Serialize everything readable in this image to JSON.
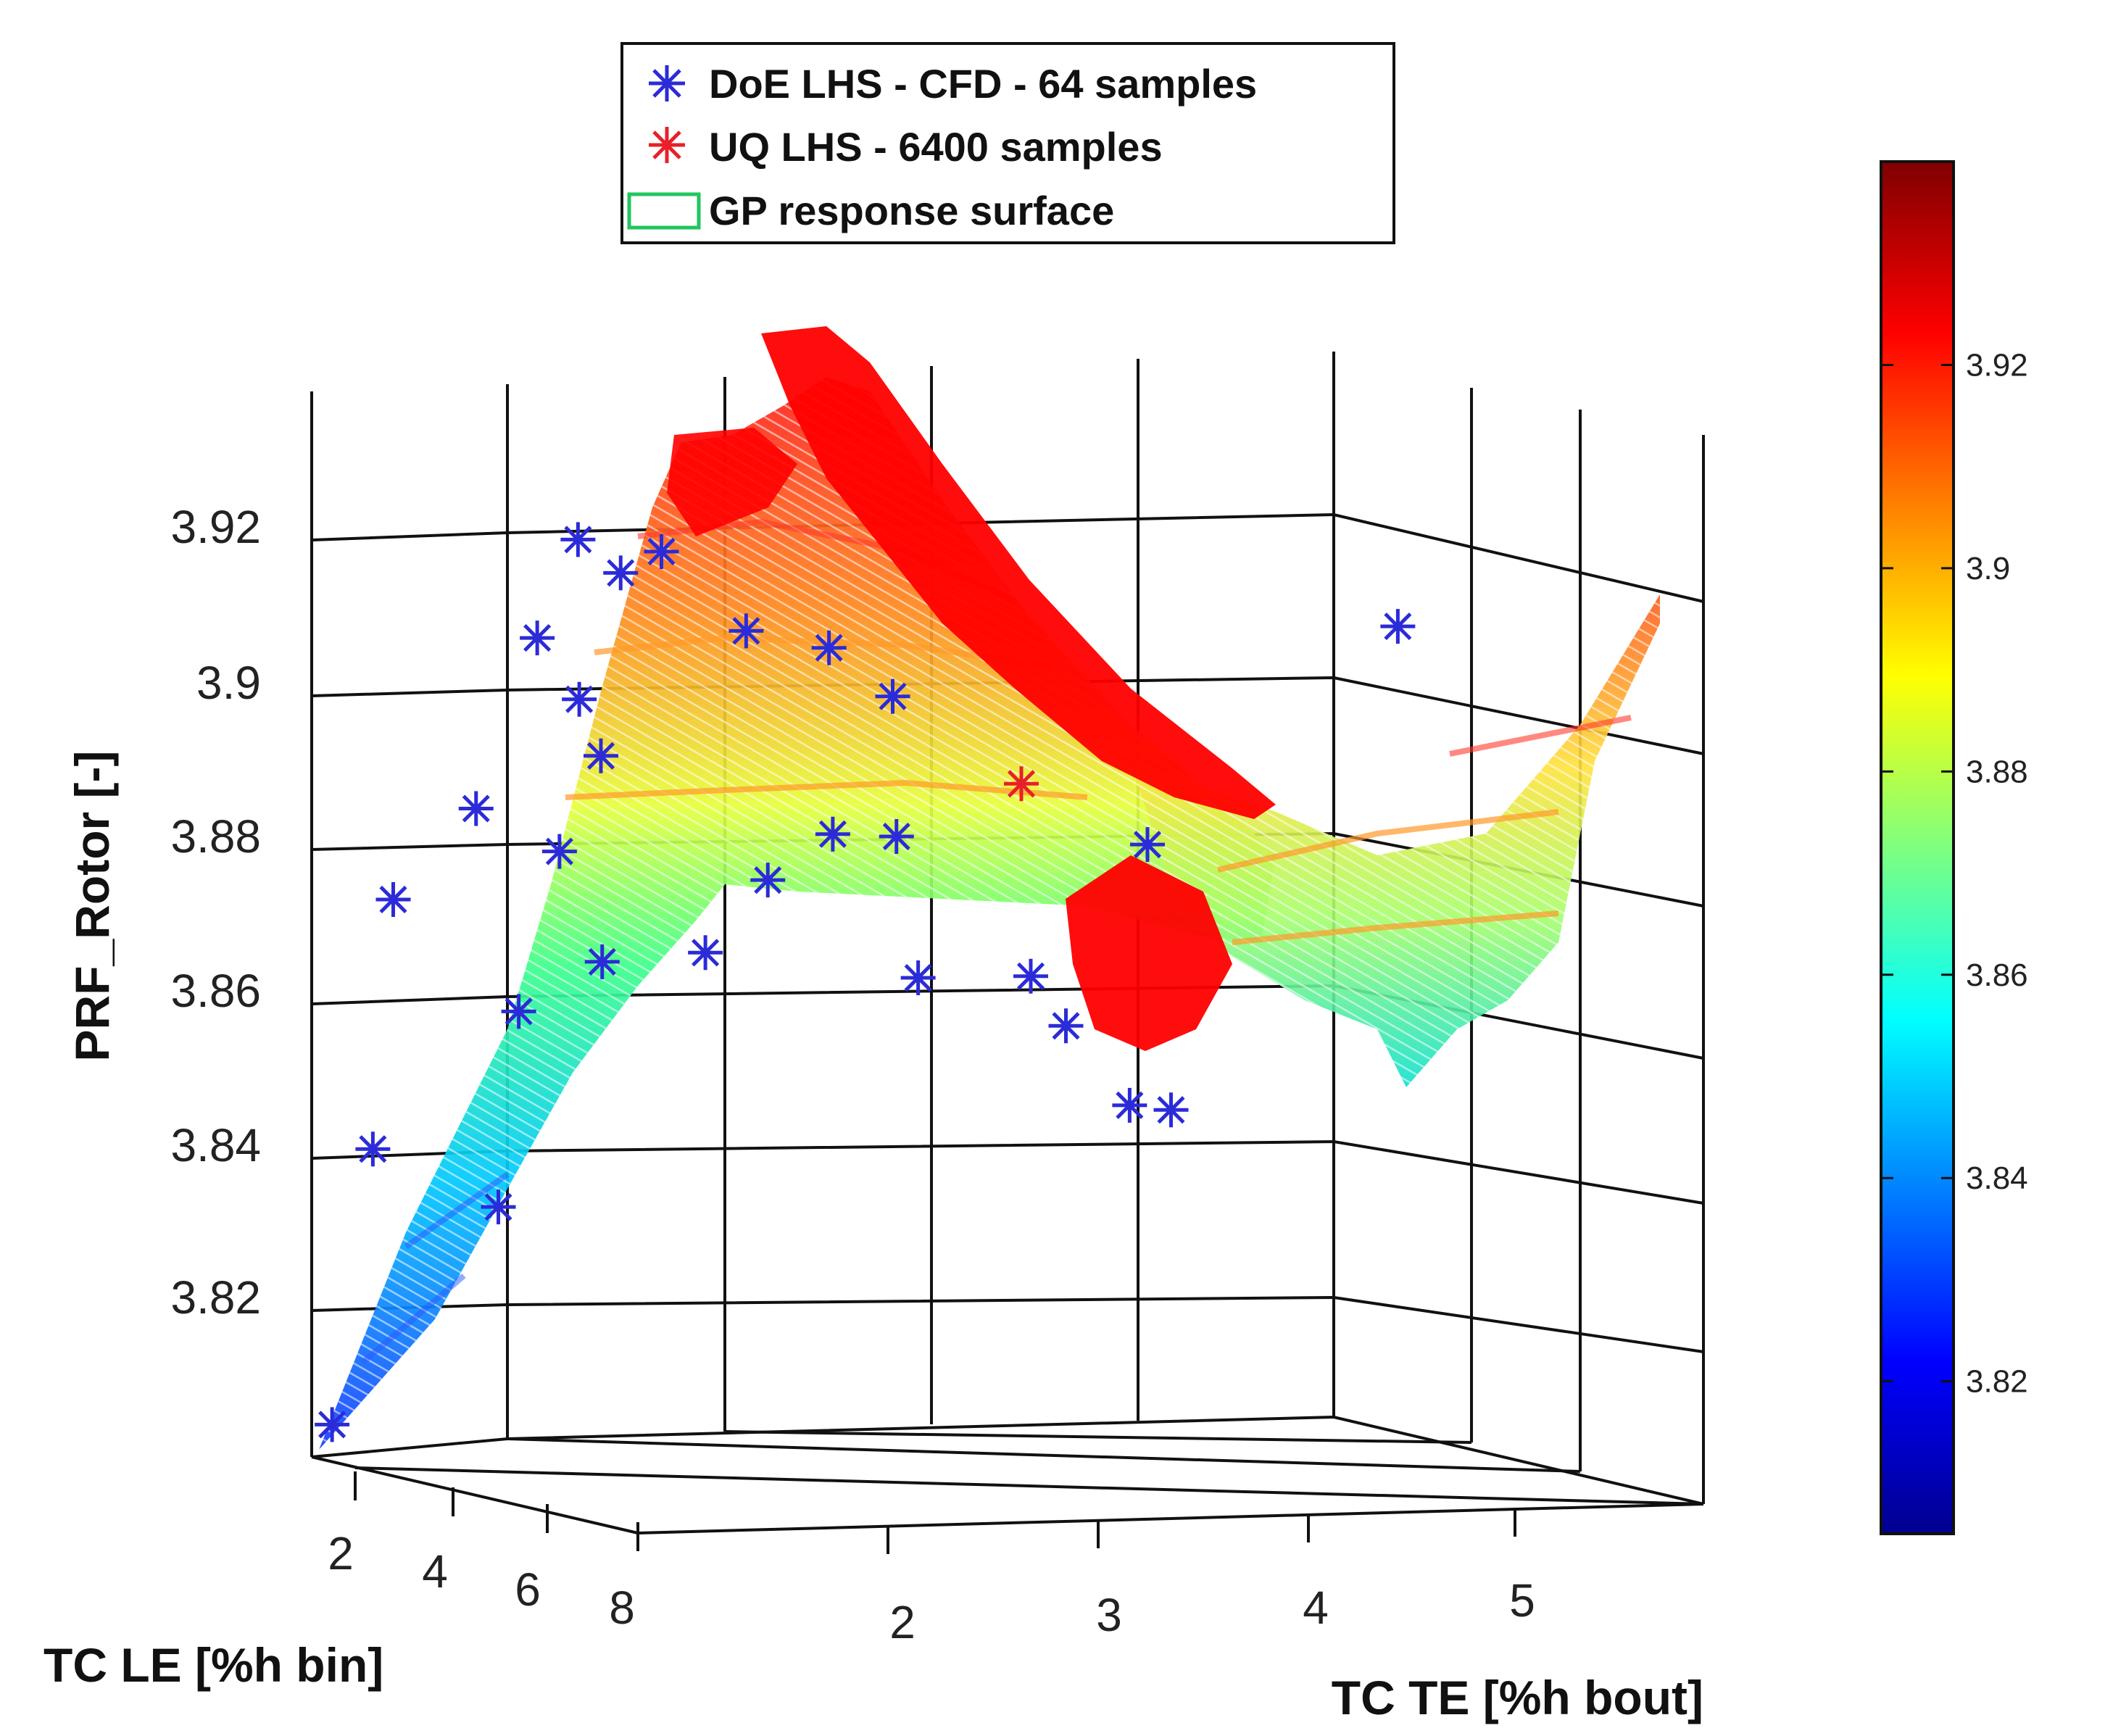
{
  "chart_data": {
    "type": "surface3d",
    "xlabel": "TC LE [%h bin]",
    "ylabel": "TC TE [%h bout]",
    "zlabel": "PRF_Rotor [-]",
    "x_ticks": [
      "2",
      "4",
      "6",
      "8"
    ],
    "y_ticks": [
      "2",
      "3",
      "4",
      "5"
    ],
    "z_ticks": [
      "3.82",
      "3.84",
      "3.86",
      "3.88",
      "3.9",
      "3.92"
    ],
    "colorbar": {
      "colormap": "jet",
      "range": [
        3.805,
        3.94
      ],
      "ticks": [
        "3.82",
        "3.84",
        "3.86",
        "3.88",
        "3.9",
        "3.92"
      ]
    },
    "legend": {
      "position": "top-center",
      "entries": [
        {
          "label": "DoE LHS - CFD - 64 samples",
          "marker": "asterisk",
          "color": "#2b2bd8"
        },
        {
          "label": "UQ LHS - 6400 samples",
          "marker": "asterisk",
          "color": "#e8202a"
        },
        {
          "label": "GP response surface",
          "marker": "rectangle",
          "color": "#22c55e"
        }
      ]
    },
    "series": [
      {
        "name": "DoE LHS - CFD - 64 samples",
        "points": [
          [
            1.5,
            1.0,
            3.806
          ],
          [
            3.0,
            1.5,
            3.836
          ],
          [
            2.5,
            1.0,
            3.843
          ],
          [
            3.5,
            1.5,
            3.862
          ],
          [
            3.0,
            1.0,
            3.876
          ],
          [
            4.0,
            1.8,
            3.869
          ],
          [
            4.5,
            1.5,
            3.884
          ],
          [
            4.0,
            1.2,
            3.889
          ],
          [
            5.0,
            1.6,
            3.897
          ],
          [
            5.5,
            1.4,
            3.905
          ],
          [
            5.5,
            1.2,
            3.913
          ],
          [
            6.0,
            1.5,
            3.922
          ],
          [
            6.5,
            1.2,
            3.927
          ],
          [
            7.0,
            1.5,
            3.926
          ],
          [
            6.5,
            2.0,
            3.915
          ],
          [
            7.5,
            2.2,
            3.914
          ],
          [
            7.0,
            2.6,
            3.907
          ],
          [
            6.0,
            2.2,
            3.882
          ],
          [
            5.5,
            2.0,
            3.872
          ],
          [
            4.5,
            2.8,
            3.886
          ],
          [
            4.0,
            3.2,
            3.885
          ],
          [
            3.5,
            3.4,
            3.866
          ],
          [
            4.2,
            3.8,
            3.867
          ],
          [
            3.0,
            4.2,
            3.859
          ],
          [
            2.5,
            4.6,
            3.848
          ],
          [
            3.0,
            4.7,
            3.848
          ],
          [
            5.0,
            4.2,
            3.885
          ],
          [
            6.5,
            5.1,
            3.915
          ]
        ]
      },
      {
        "name": "UQ LHS - 6400 samples",
        "region_z_range": [
          3.855,
          3.935
        ],
        "outlier_points": [
          [
            5.0,
            3.6,
            3.893
          ]
        ]
      },
      {
        "name": "GP response surface",
        "z_range": [
          3.806,
          3.93
        ]
      }
    ]
  }
}
